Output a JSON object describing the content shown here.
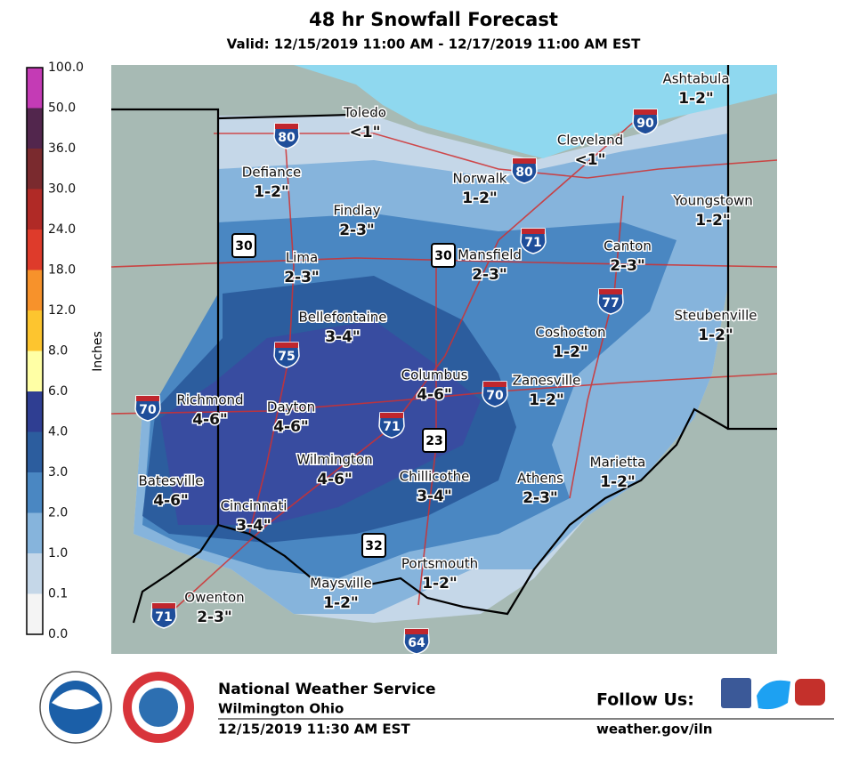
{
  "header": {
    "title": "48 hr Snowfall Forecast",
    "subtitle": "Valid: 12/15/2019 11:00 AM - 12/17/2019 11:00 AM EST"
  },
  "legend": {
    "unit": "Inches",
    "labels": [
      "100.0",
      "50.0",
      "36.0",
      "30.0",
      "24.0",
      "18.0",
      "12.0",
      "8.0",
      "6.0",
      "4.0",
      "3.0",
      "2.0",
      "1.0",
      "0.1",
      "0.0"
    ],
    "colors": [
      "#c43bb5",
      "#52264d",
      "#7a2a2e",
      "#b02a26",
      "#de3b2b",
      "#f7922b",
      "#fdc52f",
      "#ffffa5",
      "#2f3e92",
      "#2c5d9e",
      "#4a87c2",
      "#86b4dc",
      "#c5d7e8",
      "#f4f4f4"
    ]
  },
  "cities": [
    {
      "name": "Toledo",
      "amount": "<1\""
    },
    {
      "name": "Ashtabula",
      "amount": "1-2\""
    },
    {
      "name": "Cleveland",
      "amount": "<1\""
    },
    {
      "name": "Defiance",
      "amount": "1-2\""
    },
    {
      "name": "Norwalk",
      "amount": "1-2\""
    },
    {
      "name": "Findlay",
      "amount": "2-3\""
    },
    {
      "name": "Youngstown",
      "amount": "1-2\""
    },
    {
      "name": "Lima",
      "amount": "2-3\""
    },
    {
      "name": "Mansfield",
      "amount": "2-3\""
    },
    {
      "name": "Canton",
      "amount": "2-3\""
    },
    {
      "name": "Bellefontaine",
      "amount": "3-4\""
    },
    {
      "name": "Steubenville",
      "amount": "1-2\""
    },
    {
      "name": "Coshocton",
      "amount": "1-2\""
    },
    {
      "name": "Columbus",
      "amount": "4-6\""
    },
    {
      "name": "Zanesville",
      "amount": "1-2\""
    },
    {
      "name": "Richmond",
      "amount": "4-6\""
    },
    {
      "name": "Dayton",
      "amount": "4-6\""
    },
    {
      "name": "Wilmington",
      "amount": "4-6\""
    },
    {
      "name": "Chillicothe",
      "amount": "3-4\""
    },
    {
      "name": "Athens",
      "amount": "2-3\""
    },
    {
      "name": "Marietta",
      "amount": "1-2\""
    },
    {
      "name": "Batesville",
      "amount": "4-6\""
    },
    {
      "name": "Cincinnati",
      "amount": "3-4\""
    },
    {
      "name": "Portsmouth",
      "amount": "1-2\""
    },
    {
      "name": "Maysville",
      "amount": "1-2\""
    },
    {
      "name": "Owenton",
      "amount": "2-3\""
    }
  ],
  "shields": [
    {
      "type": "interstate",
      "number": "80"
    },
    {
      "type": "interstate",
      "number": "90"
    },
    {
      "type": "interstate",
      "number": "80"
    },
    {
      "type": "interstate",
      "number": "71"
    },
    {
      "type": "interstate",
      "number": "77"
    },
    {
      "type": "interstate",
      "number": "75"
    },
    {
      "type": "interstate",
      "number": "70"
    },
    {
      "type": "interstate",
      "number": "70"
    },
    {
      "type": "interstate",
      "number": "71"
    },
    {
      "type": "interstate",
      "number": "71"
    },
    {
      "type": "interstate",
      "number": "64"
    },
    {
      "type": "us",
      "number": "30"
    },
    {
      "type": "us",
      "number": "30"
    },
    {
      "type": "us",
      "number": "23"
    },
    {
      "type": "us",
      "number": "32"
    }
  ],
  "footer": {
    "office": "National Weather Service",
    "location": "Wilmington Ohio",
    "issued": "12/15/2019 11:30 AM EST",
    "follow": "Follow Us:",
    "url": "weather.gov/iln"
  }
}
